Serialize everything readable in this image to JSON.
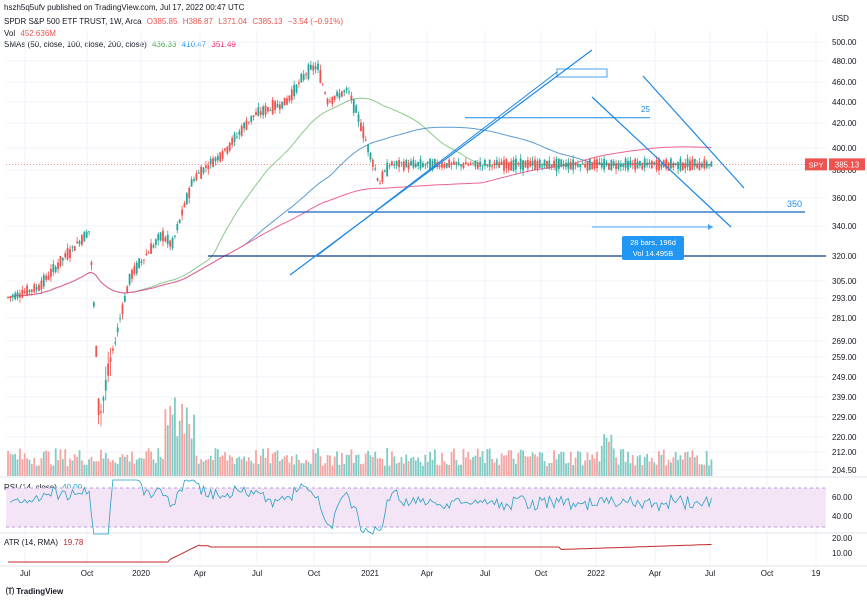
{
  "header": {
    "published": "hszh5q5ufv published on TradingView.com, Jul 17, 2022 00:47 UTC",
    "symbol_line": "SPDR S&P 500 ETF TRUST, 1W, Arca",
    "ohlc": {
      "o": "O385.85",
      "h": "H386.87",
      "l": "L371.04",
      "c": "C385.13",
      "chg": "−3.54 (−0.91%)"
    },
    "currency": "USD"
  },
  "indicators": {
    "vol": {
      "label": "Vol",
      "value": "452.636M"
    },
    "smas": {
      "label": "SMAs (50, close, 100, close, 200, close)",
      "values": [
        "436.33",
        "410.47",
        "351.49"
      ]
    },
    "rsi": {
      "label": "RSI (14, close)",
      "value": "40.00"
    },
    "atr": {
      "label": "ATR (14, RMA)",
      "value": "19.78"
    }
  },
  "price_tag": {
    "symbol": "SPY",
    "value": "385.13"
  },
  "footer": {
    "brand": "TradingView"
  },
  "colors": {
    "up": "#26a69a",
    "down": "#ef5350",
    "sma50": "#8bc98b",
    "sma100": "#5b9bd5",
    "sma200": "#f06292",
    "rsi": "#26a0c6",
    "atr": "#c62828",
    "draw": "#1565c0"
  },
  "chart_data": {
    "type": "candlestick",
    "price_axis_ticks": [
      "500.00",
      "480.00",
      "460.00",
      "440.00",
      "420.00",
      "400.00",
      "380.00",
      "360.00",
      "340.00",
      "320.00",
      "305.00",
      "293.00",
      "281.00",
      "269.00",
      "259.00",
      "249.00",
      "239.00",
      "229.00",
      "220.00",
      "212.00",
      "204.50"
    ],
    "rsi_axis_ticks": [
      "60.00",
      "40.00"
    ],
    "atr_axis_ticks": [
      "20.00",
      "10.00"
    ],
    "time_axis_labels": [
      "Jul",
      "Oct",
      "2020",
      "Apr",
      "Jul",
      "Oct",
      "2021",
      "Apr",
      "Jul",
      "Oct",
      "2022",
      "Apr",
      "Jul",
      "Oct",
      "19"
    ],
    "annotations": {
      "level_350": "350",
      "level_425_partial": "25",
      "range_box": [
        "28 bars, 196d",
        "Vol 14.495B"
      ]
    },
    "price_anchor_points": [
      {
        "date": "2019-06",
        "close": 293
      },
      {
        "date": "2019-09",
        "close": 300
      },
      {
        "date": "2019-12",
        "close": 322
      },
      {
        "date": "2020-02",
        "close": 337
      },
      {
        "date": "2020-03",
        "close": 228
      },
      {
        "date": "2020-06",
        "close": 308
      },
      {
        "date": "2020-09",
        "close": 334
      },
      {
        "date": "2020-10",
        "close": 327
      },
      {
        "date": "2020-12",
        "close": 373
      },
      {
        "date": "2021-03",
        "close": 396
      },
      {
        "date": "2021-06",
        "close": 428
      },
      {
        "date": "2021-09",
        "close": 440
      },
      {
        "date": "2021-11",
        "close": 470
      },
      {
        "date": "2021-12",
        "close": 475
      },
      {
        "date": "2022-01",
        "close": 441
      },
      {
        "date": "2022-03",
        "close": 452
      },
      {
        "date": "2022-05",
        "close": 398
      },
      {
        "date": "2022-06",
        "close": 370
      },
      {
        "date": "2022-07",
        "close": 385
      }
    ],
    "sma_end_values": {
      "sma50": 436.33,
      "sma100": 410.47,
      "sma200": 351.49
    },
    "horizontal_levels": [
      350,
      320,
      425
    ]
  }
}
